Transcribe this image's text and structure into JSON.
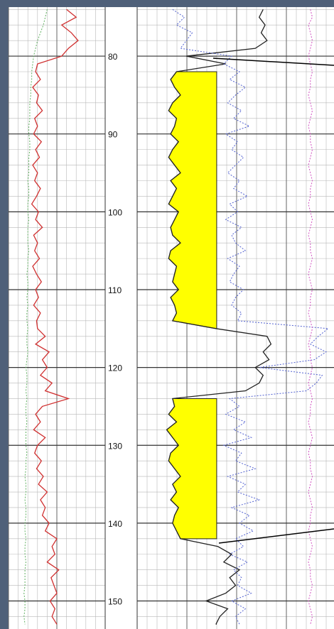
{
  "chart_data": {
    "type": "well-log",
    "ylim": [
      73.7,
      153.6
    ],
    "yticks": [
      80,
      90,
      100,
      110,
      120,
      130,
      140,
      150
    ],
    "grid": true,
    "depths": [
      74,
      75,
      76,
      77,
      78,
      79,
      80,
      81,
      82,
      83,
      84,
      85,
      86,
      87,
      88,
      89,
      90,
      91,
      92,
      93,
      94,
      95,
      96,
      97,
      98,
      99,
      100,
      101,
      102,
      103,
      104,
      105,
      106,
      107,
      108,
      109,
      110,
      111,
      112,
      113,
      114,
      115,
      116,
      117,
      118,
      119,
      120,
      121,
      122,
      123,
      124,
      125,
      126,
      127,
      128,
      129,
      130,
      131,
      132,
      133,
      134,
      135,
      136,
      137,
      138,
      139,
      140,
      141,
      142,
      143,
      144,
      145,
      146,
      147,
      148,
      149,
      150,
      151,
      152,
      153
    ],
    "series": [
      {
        "track": 1,
        "color": "#d03030",
        "style": "solid",
        "values": [
          60,
          70,
          55,
          65,
          72,
          62,
          55,
          30,
          28,
          33,
          25,
          31,
          29,
          35,
          27,
          30,
          26,
          34,
          28,
          32,
          25,
          30,
          27,
          33,
          29,
          24,
          31,
          28,
          35,
          26,
          30,
          27,
          32,
          25,
          29,
          34,
          28,
          31,
          26,
          33,
          29,
          30,
          38,
          28,
          42,
          35,
          40,
          33,
          45,
          38,
          62,
          35,
          28,
          33,
          26,
          38,
          30,
          27,
          34,
          29,
          36,
          31,
          40,
          33,
          38,
          35,
          42,
          38,
          50,
          45,
          48,
          40,
          52,
          44,
          47,
          50,
          43,
          48,
          45,
          50
        ]
      },
      {
        "track": 1,
        "color": "#60b060",
        "style": "dotted",
        "values": [
          40,
          38,
          36,
          33,
          30,
          28,
          26,
          25,
          24,
          24,
          23,
          23,
          22,
          22,
          22,
          21,
          21,
          22,
          22,
          21,
          21,
          21,
          20,
          21,
          21,
          20,
          20,
          21,
          20,
          20,
          20,
          21,
          20,
          20,
          19,
          20,
          20,
          19,
          20,
          19,
          19,
          20,
          19,
          19,
          20,
          19,
          18,
          19,
          19,
          18,
          19,
          18,
          18,
          19,
          18,
          18,
          18,
          19,
          18,
          18,
          17,
          18,
          18,
          17,
          18,
          18,
          17,
          17,
          18,
          17,
          17,
          18,
          17,
          17,
          17,
          16,
          17,
          17,
          16,
          17
        ]
      },
      {
        "track": 2,
        "color": "#222222",
        "style": "solid",
        "fill_color": "#ffff00",
        "cutoff": 40.4,
        "values": [
          64,
          62,
          65,
          63,
          66,
          60,
          25,
          45,
          20,
          17,
          19,
          22,
          18,
          16,
          20,
          19,
          17,
          21,
          18,
          16,
          19,
          22,
          17,
          20,
          18,
          16,
          21,
          19,
          17,
          18,
          22,
          17,
          16,
          20,
          19,
          18,
          21,
          17,
          19,
          20,
          18,
          40,
          66,
          68,
          64,
          67,
          60,
          64,
          62,
          55,
          18,
          19,
          16,
          20,
          15,
          18,
          21,
          17,
          16,
          19,
          22,
          18,
          20,
          17,
          21,
          19,
          18,
          20,
          22,
          41,
          48,
          44,
          52,
          47,
          50,
          45,
          35,
          46,
          42,
          40
        ]
      },
      {
        "track": 2,
        "color": "#5060d0",
        "style": "dotted",
        "values": [
          18,
          24,
          20,
          28,
          25,
          22,
          48,
          44,
          52,
          47,
          55,
          50,
          46,
          53,
          49,
          57,
          45,
          51,
          48,
          54,
          50,
          46,
          52,
          49,
          56,
          47,
          51,
          45,
          53,
          48,
          50,
          55,
          46,
          52,
          49,
          47,
          54,
          50,
          48,
          53,
          51,
          97,
          92,
          88,
          96,
          90,
          62,
          94,
          91,
          86,
          47,
          52,
          45,
          55,
          49,
          58,
          44,
          53,
          50,
          60,
          46,
          55,
          51,
          62,
          48,
          57,
          52,
          59,
          50,
          54,
          47,
          56,
          49,
          53,
          51,
          58,
          48,
          55,
          50,
          52
        ]
      },
      {
        "track": 2,
        "color": "#d050c0",
        "style": "dotted",
        "values": [
          88,
          89,
          87,
          88,
          89,
          88,
          87,
          88,
          89,
          88,
          88,
          87,
          88,
          89,
          88,
          87,
          88,
          88,
          89,
          88,
          87,
          88,
          89,
          88,
          88,
          87,
          88,
          89,
          88,
          87,
          88,
          88,
          89,
          88,
          87,
          88,
          89,
          88,
          88,
          87,
          88,
          89,
          88,
          87,
          88,
          88,
          89,
          88,
          87,
          88,
          89,
          88,
          88,
          87,
          88,
          89,
          88,
          87,
          88,
          88,
          89,
          88,
          87,
          88,
          89,
          88,
          88,
          87,
          88,
          89,
          88,
          87,
          88,
          88,
          89,
          88,
          87,
          88,
          89,
          88
        ]
      }
    ]
  }
}
